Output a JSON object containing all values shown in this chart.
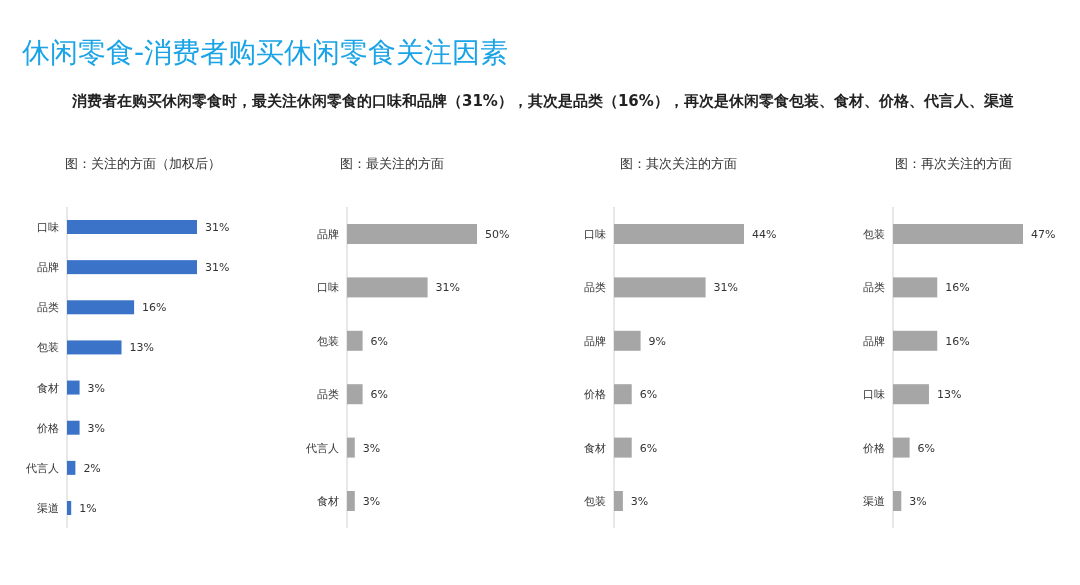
{
  "chart_data": [
    {
      "type": "other",
      "title": "休闲零食-消费者购买休闲零食关注因素",
      "subtitle": "消费者在购买休闲零食时，最关注休闲零食的口味和品牌（31%），其次是品类（16%），再次是休闲零食包装、食材、价格、代言人、渠道"
    },
    {
      "type": "bar",
      "orientation": "horizontal",
      "title": "图：关注的方面（加权后）",
      "categories": [
        "口味",
        "品牌",
        "品类",
        "包装",
        "食材",
        "价格",
        "代言人",
        "渠道"
      ],
      "values": [
        31,
        31,
        16,
        13,
        3,
        3,
        2,
        1
      ],
      "value_labels": [
        "31%",
        "31%",
        "16%",
        "13%",
        "3%",
        "3%",
        "2%",
        "1%"
      ],
      "color": "#3a73c8"
    },
    {
      "type": "bar",
      "orientation": "horizontal",
      "title": "图：最关注的方面",
      "categories": [
        "品牌",
        "口味",
        "包装",
        "品类",
        "代言人",
        "食材"
      ],
      "values": [
        50,
        31,
        6,
        6,
        3,
        3
      ],
      "value_labels": [
        "50%",
        "31%",
        "6%",
        "6%",
        "3%",
        "3%"
      ],
      "color": "#a6a6a6"
    },
    {
      "type": "bar",
      "orientation": "horizontal",
      "title": "图：其次关注的方面",
      "categories": [
        "口味",
        "品类",
        "品牌",
        "价格",
        "食材",
        "包装"
      ],
      "values": [
        44,
        31,
        9,
        6,
        6,
        3
      ],
      "value_labels": [
        "44%",
        "31%",
        "9%",
        "6%",
        "6%",
        "3%"
      ],
      "color": "#a6a6a6"
    },
    {
      "type": "bar",
      "orientation": "horizontal",
      "title": "图：再次关注的方面",
      "categories": [
        "包装",
        "品类",
        "品牌",
        "口味",
        "价格",
        "渠道"
      ],
      "values": [
        47,
        16,
        16,
        13,
        6,
        3
      ],
      "value_labels": [
        "47%",
        "16%",
        "16%",
        "13%",
        "6%",
        "3%"
      ],
      "color": "#a6a6a6"
    }
  ]
}
